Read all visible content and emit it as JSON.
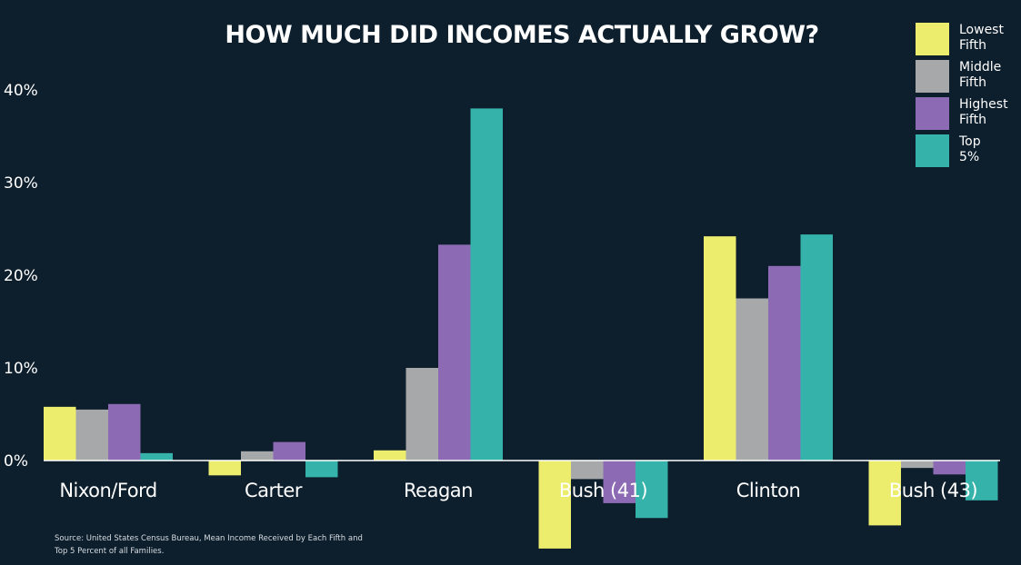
{
  "chart_data": {
    "type": "bar",
    "title": "HOW MUCH DID INCOMES ACTUALLY GROW?",
    "categories": [
      "Nixon/Ford",
      "Carter",
      "Reagan",
      "Bush (41)",
      "Clinton",
      "Bush (43)"
    ],
    "series": [
      {
        "name": "Lowest Fifth",
        "color": "#eded6d",
        "values": [
          5.8,
          -1.6,
          1.1,
          -9.5,
          24.2,
          -7.0
        ]
      },
      {
        "name": "Middle Fifth",
        "color": "#a7a8aa",
        "values": [
          5.5,
          1.0,
          10.0,
          -2.0,
          17.5,
          -0.8
        ]
      },
      {
        "name": "Highest Fifth",
        "color": "#8d6bb4",
        "values": [
          6.1,
          2.0,
          23.3,
          -4.6,
          21.0,
          -1.5
        ]
      },
      {
        "name": "Top 5%",
        "color": "#35b3ab",
        "values": [
          0.8,
          -1.8,
          38.0,
          -6.2,
          24.4,
          -4.3
        ]
      }
    ],
    "yticks": [
      "0%",
      "10%",
      "20%",
      "30%",
      "40%"
    ],
    "ytick_values": [
      0,
      10,
      20,
      30,
      40
    ],
    "ylim": [
      -10,
      41
    ],
    "legend": [
      {
        "lines": [
          "Lowest",
          "Fifth"
        ]
      },
      {
        "lines": [
          "Middle",
          "Fifth"
        ]
      },
      {
        "lines": [
          "Highest",
          "Fifth"
        ]
      },
      {
        "lines": [
          "Top",
          "5%"
        ]
      }
    ],
    "legend_position": "top-right",
    "grid": false,
    "source_lines": [
      "Source: United States Census Bureau, Mean Income Received by Each Fifth and",
      "Top 5 Percent of all Families."
    ]
  }
}
